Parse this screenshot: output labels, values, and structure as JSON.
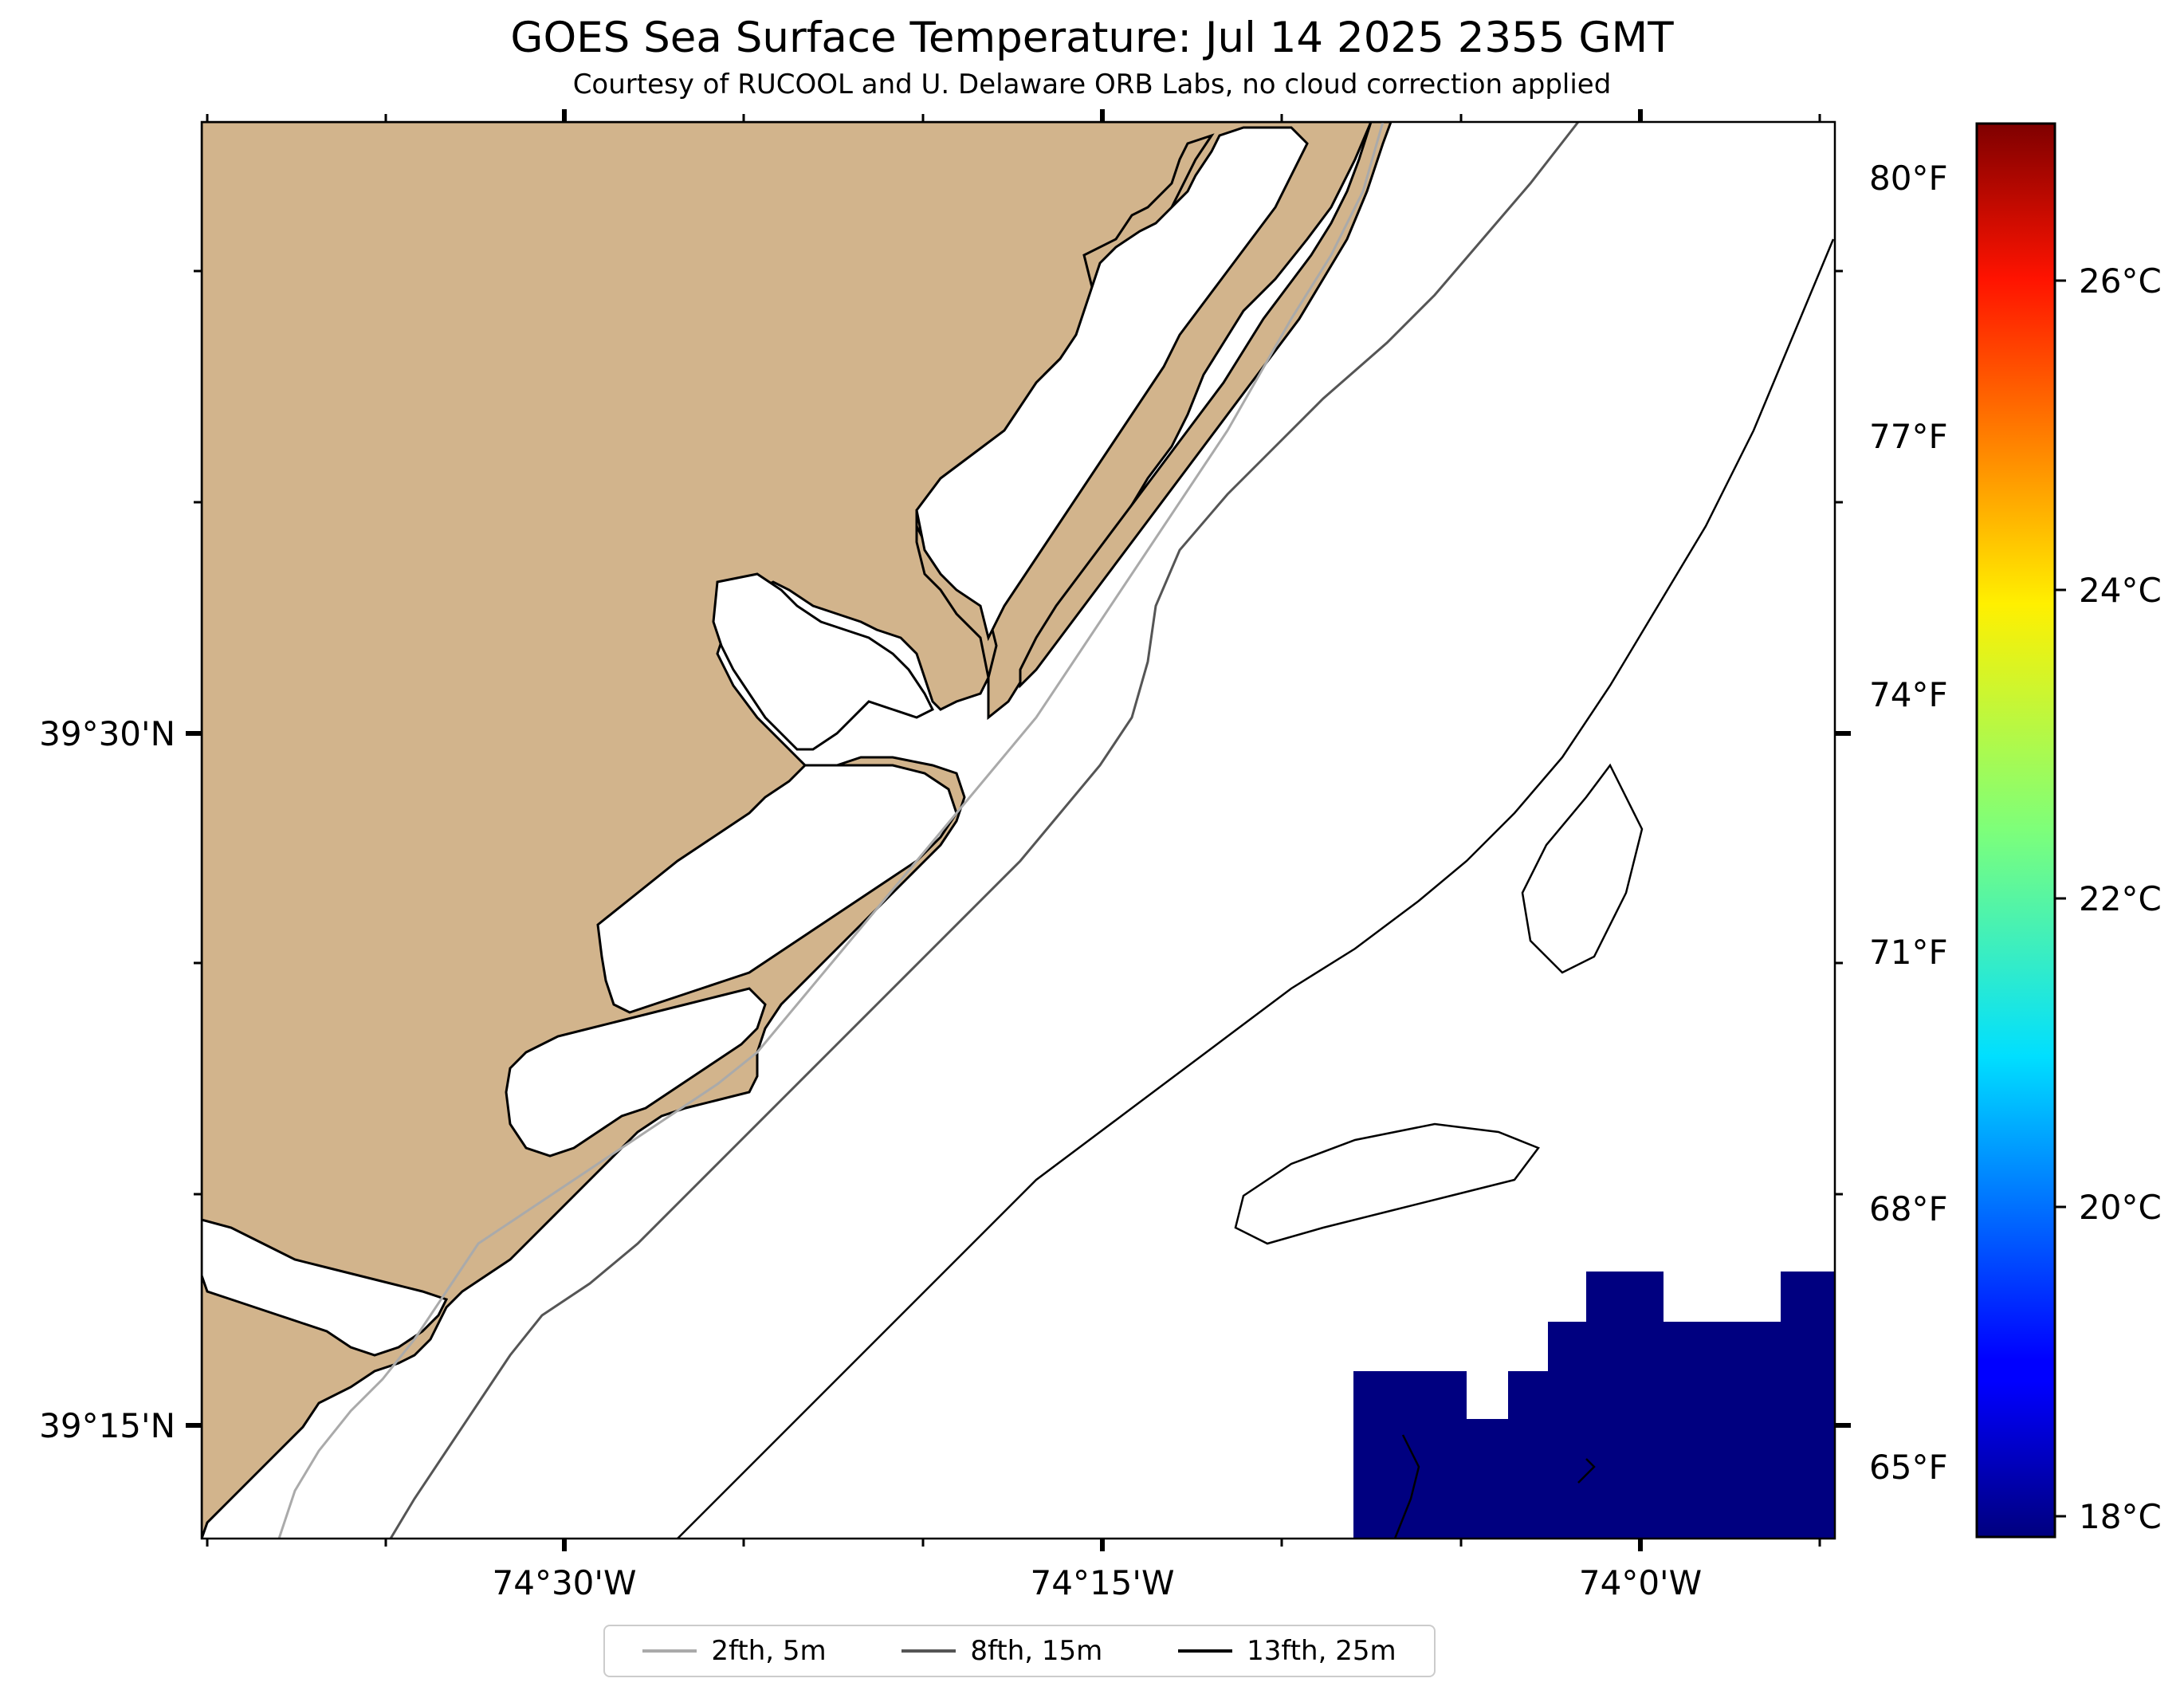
{
  "title": "GOES Sea Surface Temperature: Jul 14 2025 2355 GMT",
  "subtitle": "Courtesy of RUCOOL and U. Delaware ORB Labs, no cloud correction applied",
  "map": {
    "land_color": "#d2b48c",
    "water_color": "#ffffff",
    "sst_patch_color": "#000080",
    "lon_labels": [
      "74°30'W",
      "74°15'W",
      "74°0'W"
    ],
    "lat_labels": [
      "39°30'N",
      "39°15'N"
    ]
  },
  "colorbar": {
    "colormap": "jet",
    "celsius_labels": [
      "26°C",
      "24°C",
      "22°C",
      "20°C",
      "18°C"
    ],
    "fahrenheit_labels": [
      "80°F",
      "77°F",
      "74°F",
      "71°F",
      "68°F",
      "65°F"
    ]
  },
  "legend": {
    "items": [
      {
        "label": "2fth, 5m",
        "color": "#aaaaaa"
      },
      {
        "label": "8fth, 15m",
        "color": "#555555"
      },
      {
        "label": "13fth, 25m",
        "color": "#000000"
      }
    ]
  }
}
